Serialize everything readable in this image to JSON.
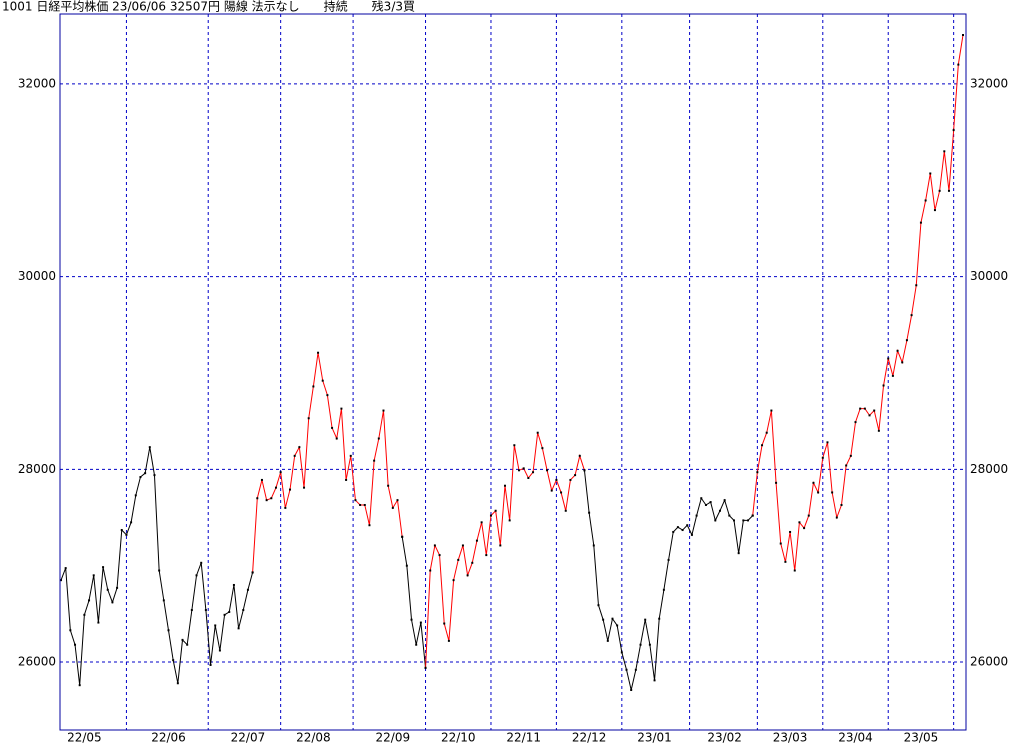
{
  "chart_data": {
    "type": "line",
    "title": "1001 日経平均株価 23/06/06 32507円 陽線 法示なし　　持続　　残3/3買",
    "categories": [
      null,
      null,
      null,
      null,
      null,
      "22/05",
      null,
      null,
      null,
      null,
      null,
      null,
      null,
      null,
      null,
      null,
      null,
      null,
      null,
      null,
      null,
      null,
      null,
      "22/06",
      null,
      null,
      null,
      null,
      null,
      null,
      null,
      null,
      null,
      null,
      null,
      null,
      null,
      null,
      null,
      null,
      "22/07",
      null,
      null,
      null,
      null,
      null,
      null,
      null,
      null,
      null,
      null,
      null,
      null,
      null,
      "22/08",
      null,
      null,
      null,
      null,
      null,
      null,
      null,
      null,
      null,
      null,
      null,
      null,
      null,
      null,
      null,
      null,
      "22/09",
      null,
      null,
      null,
      null,
      null,
      null,
      null,
      null,
      null,
      null,
      null,
      null,
      null,
      "22/10",
      null,
      null,
      null,
      null,
      null,
      null,
      null,
      null,
      null,
      null,
      null,
      null,
      null,
      "22/11",
      null,
      null,
      null,
      null,
      null,
      null,
      null,
      null,
      null,
      null,
      null,
      null,
      null,
      "22/12",
      null,
      null,
      null,
      null,
      null,
      null,
      null,
      null,
      null,
      null,
      null,
      null,
      null,
      "23/01",
      null,
      null,
      null,
      null,
      null,
      null,
      null,
      null,
      null,
      null,
      null,
      null,
      null,
      null,
      "23/02",
      null,
      null,
      null,
      null,
      null,
      null,
      null,
      null,
      null,
      null,
      null,
      null,
      null,
      "23/03",
      null,
      null,
      null,
      null,
      null,
      null,
      null,
      null,
      null,
      null,
      null,
      null,
      null,
      "23/04",
      null,
      null,
      null,
      null,
      null,
      null,
      null,
      null,
      null,
      null,
      null,
      null,
      null,
      "23/05",
      null,
      null,
      null,
      null,
      null,
      null,
      null,
      null,
      null
    ],
    "series": [
      {
        "color": "#000000",
        "values": [
          26850,
          26975,
          26330,
          26180,
          25760,
          26490,
          26640,
          26900,
          26410,
          26985,
          26750,
          26620,
          26770,
          27370,
          27320,
          27450,
          27730,
          27920,
          27960,
          28230,
          27940,
          26950,
          26640,
          26330,
          26020,
          25780,
          26230,
          26180,
          26540,
          26900,
          27030,
          26540,
          25970,
          26380,
          26120,
          26490,
          26520,
          26800,
          26350,
          26540,
          26750,
          26930,
          null,
          null,
          null,
          null,
          null,
          null,
          null,
          null,
          null,
          null,
          null,
          null,
          null,
          null,
          null,
          null,
          null,
          null,
          null,
          null,
          null,
          null,
          null,
          null,
          null,
          null,
          null,
          null,
          null,
          null,
          null,
          27300,
          27000,
          26440,
          26180,
          26410,
          25940,
          null,
          null,
          null,
          null,
          null,
          null,
          null,
          null,
          null,
          null,
          null,
          null,
          null,
          null,
          null,
          null,
          null,
          null,
          null,
          null,
          null,
          null,
          null,
          null,
          null,
          null,
          null,
          null,
          null,
          null,
          null,
          null,
          null,
          27990,
          27550,
          27210,
          26590,
          26440,
          26220,
          26450,
          26380,
          26100,
          25920,
          25710,
          25920,
          26180,
          26440,
          26180,
          25810,
          26450,
          26750,
          27060,
          27350,
          27400,
          27370,
          27420,
          27320,
          27520,
          27700,
          27630,
          27660,
          27470,
          27570,
          27680,
          27520,
          27470,
          27130,
          27470,
          27470,
          27520,
          null,
          null,
          null,
          null,
          null,
          null,
          null,
          null,
          null,
          null,
          null,
          null,
          null,
          null,
          null,
          null,
          null,
          null,
          null,
          null,
          null,
          null,
          null,
          null,
          null,
          null,
          null,
          null,
          null,
          null,
          null,
          null,
          null,
          null,
          null,
          null,
          null,
          null,
          null,
          null,
          null,
          null,
          null,
          null,
          null
        ]
      },
      {
        "color": "#ff0000",
        "values": [
          null,
          null,
          null,
          null,
          null,
          null,
          null,
          null,
          null,
          null,
          null,
          null,
          null,
          null,
          null,
          null,
          null,
          null,
          null,
          null,
          null,
          null,
          null,
          null,
          null,
          null,
          null,
          null,
          null,
          null,
          null,
          null,
          null,
          null,
          null,
          null,
          null,
          null,
          null,
          null,
          null,
          26930,
          27700,
          27890,
          27680,
          27700,
          27810,
          27970,
          27600,
          27790,
          28140,
          28230,
          27810,
          28530,
          28860,
          29210,
          28920,
          28770,
          28430,
          28320,
          28630,
          27890,
          28140,
          27680,
          27630,
          27630,
          27420,
          28090,
          28320,
          28610,
          27830,
          27600,
          27680,
          27300,
          null,
          null,
          null,
          null,
          25940,
          26950,
          27210,
          27110,
          26400,
          26220,
          26850,
          27060,
          27210,
          26900,
          27030,
          27260,
          27450,
          27110,
          27520,
          27570,
          27210,
          27830,
          27470,
          28250,
          27990,
          28010,
          27910,
          27970,
          28380,
          28220,
          27990,
          27780,
          27890,
          27760,
          27570,
          27890,
          27940,
          28140,
          27990,
          null,
          null,
          null,
          null,
          null,
          null,
          null,
          null,
          null,
          null,
          null,
          null,
          null,
          null,
          null,
          null,
          null,
          null,
          null,
          null,
          null,
          null,
          null,
          null,
          null,
          null,
          null,
          null,
          null,
          null,
          null,
          null,
          null,
          null,
          null,
          27520,
          27970,
          28250,
          28380,
          28610,
          27860,
          27230,
          27040,
          27350,
          26950,
          27450,
          27390,
          27520,
          27860,
          27760,
          28120,
          28280,
          27760,
          27500,
          27630,
          28040,
          28140,
          28490,
          28630,
          28630,
          28560,
          28610,
          28400,
          28870,
          29150,
          28970,
          29230,
          29110,
          29340,
          29600,
          29910,
          30560,
          30790,
          31070,
          30690,
          30890,
          31300,
          30890,
          31520,
          32200,
          32507
        ]
      }
    ],
    "ylim": [
      25295,
      32725
    ],
    "yticks": [
      26000,
      28000,
      30000,
      32000
    ],
    "grid": true,
    "marker_color": "#000000"
  }
}
